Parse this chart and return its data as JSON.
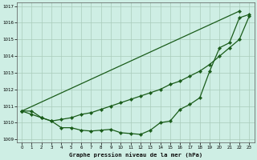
{
  "title": "Graphe pression niveau de la mer (hPa)",
  "background_color": "#ceeee4",
  "grid_color": "#aaccbb",
  "line_color": "#1a5c1a",
  "xlim": [
    -0.5,
    23.5
  ],
  "ylim": [
    1008.8,
    1017.2
  ],
  "yticks": [
    1009,
    1010,
    1011,
    1012,
    1013,
    1014,
    1015,
    1016,
    1017
  ],
  "xticks": [
    0,
    1,
    2,
    3,
    4,
    5,
    6,
    7,
    8,
    9,
    10,
    11,
    12,
    13,
    14,
    15,
    16,
    17,
    18,
    19,
    20,
    21,
    22,
    23
  ],
  "series1_straight": {
    "x": [
      0,
      22
    ],
    "y": [
      1010.7,
      1016.7
    ]
  },
  "series2_mid": {
    "x": [
      0,
      1,
      2,
      3,
      4,
      5,
      6,
      7,
      8,
      9,
      10,
      11,
      12,
      13,
      14,
      15,
      16,
      17,
      18,
      19,
      20,
      21,
      22,
      23
    ],
    "y": [
      1010.7,
      1010.5,
      1010.3,
      1010.1,
      1010.2,
      1010.3,
      1010.5,
      1010.6,
      1010.8,
      1011.0,
      1011.2,
      1011.4,
      1011.6,
      1011.8,
      1012.0,
      1012.3,
      1012.5,
      1012.8,
      1013.1,
      1013.5,
      1014.0,
      1014.5,
      1015.0,
      1016.4
    ]
  },
  "series3_ucurve": {
    "x": [
      0,
      1,
      2,
      3,
      4,
      5,
      6,
      7,
      8,
      9,
      10,
      11,
      12,
      13,
      14,
      15,
      16,
      17,
      18,
      19,
      20,
      21,
      22,
      23
    ],
    "y": [
      1010.7,
      1010.7,
      1010.3,
      1010.1,
      1009.7,
      1009.7,
      1009.55,
      1009.5,
      1009.55,
      1009.6,
      1009.4,
      1009.35,
      1009.3,
      1009.55,
      1010.0,
      1010.1,
      1010.8,
      1011.1,
      1011.5,
      1013.1,
      1014.5,
      1014.8,
      1016.3,
      1016.5
    ]
  }
}
